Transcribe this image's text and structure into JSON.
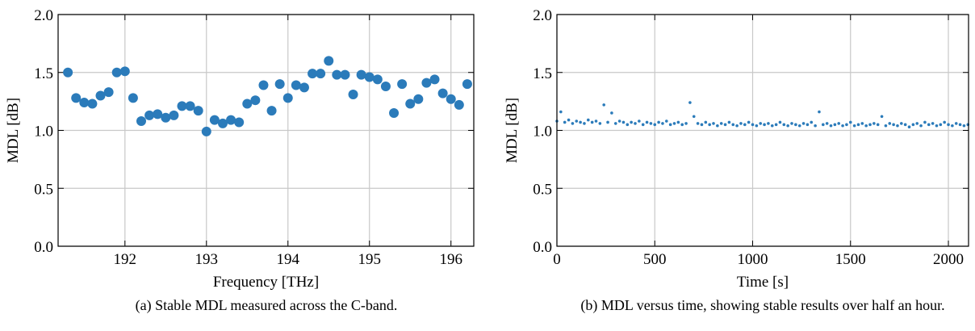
{
  "chart_data": [
    {
      "type": "scatter",
      "color": "#2b7bba",
      "grid": true,
      "xlabel": "Frequency [THz]",
      "ylabel": "MDL [dB]",
      "caption": "(a) Stable MDL measured across the C-band.",
      "xlim": [
        191.18,
        196.28
      ],
      "ylim": [
        0,
        2
      ],
      "xticks": [
        192,
        193,
        194,
        195,
        196
      ],
      "yticks": [
        {
          "value": 0,
          "label": "0.0"
        },
        {
          "value": 0.5,
          "label": "0.5"
        },
        {
          "value": 1,
          "label": "1.0"
        },
        {
          "value": 1.5,
          "label": "1.5"
        },
        {
          "value": 2,
          "label": "2.0"
        }
      ],
      "x": [
        191.3,
        191.4,
        191.5,
        191.6,
        191.7,
        191.8,
        191.9,
        192.0,
        192.1,
        192.2,
        192.3,
        192.4,
        192.5,
        192.6,
        192.7,
        192.8,
        192.9,
        193.0,
        193.1,
        193.2,
        193.3,
        193.4,
        193.5,
        193.6,
        193.7,
        193.8,
        193.9,
        194.0,
        194.1,
        194.2,
        194.3,
        194.4,
        194.5,
        194.6,
        194.7,
        194.8,
        194.9,
        195.0,
        195.1,
        195.2,
        195.3,
        195.4,
        195.5,
        195.6,
        195.7,
        195.8,
        195.9,
        196.0,
        196.1,
        196.2
      ],
      "values": [
        1.5,
        1.28,
        1.24,
        1.23,
        1.3,
        1.33,
        1.5,
        1.51,
        1.28,
        1.08,
        1.13,
        1.14,
        1.11,
        1.13,
        1.21,
        1.21,
        1.17,
        0.99,
        1.09,
        1.06,
        1.09,
        1.07,
        1.23,
        1.26,
        1.39,
        1.17,
        1.4,
        1.28,
        1.39,
        1.37,
        1.49,
        1.49,
        1.6,
        1.48,
        1.48,
        1.31,
        1.48,
        1.46,
        1.44,
        1.38,
        1.15,
        1.4,
        1.23,
        1.27,
        1.41,
        1.44,
        1.32,
        1.27,
        1.22,
        1.4
      ]
    },
    {
      "type": "scatter",
      "color": "#2b7bba",
      "grid": true,
      "xlabel": "Time [s]",
      "ylabel": "MDL [dB]",
      "caption": "(b) MDL versus time, showing stable results over half an hour.",
      "xlim": [
        0,
        2103
      ],
      "ylim": [
        0,
        2
      ],
      "xticks": [
        0,
        500,
        1000,
        1500,
        2000
      ],
      "yticks": [
        {
          "value": 0,
          "label": "0.0"
        },
        {
          "value": 0.5,
          "label": "0.5"
        },
        {
          "value": 1,
          "label": "1.0"
        },
        {
          "value": 1.5,
          "label": "1.5"
        },
        {
          "value": 2,
          "label": "2.0"
        }
      ],
      "x": [
        0,
        20,
        40,
        60,
        80,
        100,
        120,
        140,
        160,
        180,
        200,
        220,
        240,
        260,
        280,
        300,
        320,
        340,
        360,
        380,
        400,
        420,
        440,
        460,
        480,
        500,
        520,
        540,
        560,
        580,
        600,
        620,
        640,
        660,
        680,
        700,
        720,
        740,
        760,
        780,
        800,
        820,
        840,
        860,
        880,
        900,
        920,
        940,
        960,
        980,
        1000,
        1020,
        1040,
        1060,
        1080,
        1100,
        1120,
        1140,
        1160,
        1180,
        1200,
        1220,
        1240,
        1260,
        1280,
        1300,
        1320,
        1340,
        1360,
        1380,
        1400,
        1420,
        1440,
        1460,
        1480,
        1500,
        1520,
        1540,
        1560,
        1580,
        1600,
        1620,
        1640,
        1660,
        1680,
        1700,
        1720,
        1740,
        1760,
        1780,
        1800,
        1820,
        1840,
        1860,
        1880,
        1900,
        1920,
        1940,
        1960,
        1980,
        2000,
        2020,
        2040,
        2060,
        2080,
        2100
      ],
      "values": [
        1.08,
        1.16,
        1.07,
        1.09,
        1.06,
        1.08,
        1.07,
        1.06,
        1.09,
        1.07,
        1.08,
        1.06,
        1.22,
        1.07,
        1.15,
        1.06,
        1.08,
        1.07,
        1.05,
        1.07,
        1.06,
        1.08,
        1.05,
        1.07,
        1.06,
        1.05,
        1.07,
        1.06,
        1.08,
        1.05,
        1.06,
        1.07,
        1.05,
        1.06,
        1.24,
        1.12,
        1.06,
        1.05,
        1.07,
        1.05,
        1.06,
        1.04,
        1.06,
        1.05,
        1.07,
        1.05,
        1.04,
        1.06,
        1.05,
        1.07,
        1.05,
        1.04,
        1.06,
        1.05,
        1.06,
        1.04,
        1.05,
        1.07,
        1.05,
        1.04,
        1.06,
        1.05,
        1.04,
        1.06,
        1.05,
        1.07,
        1.04,
        1.16,
        1.05,
        1.06,
        1.04,
        1.05,
        1.06,
        1.04,
        1.05,
        1.07,
        1.04,
        1.05,
        1.06,
        1.04,
        1.05,
        1.06,
        1.05,
        1.12,
        1.04,
        1.06,
        1.05,
        1.04,
        1.06,
        1.05,
        1.03,
        1.05,
        1.06,
        1.04,
        1.07,
        1.05,
        1.06,
        1.04,
        1.05,
        1.07,
        1.05,
        1.04,
        1.06,
        1.05,
        1.04,
        1.05
      ]
    }
  ]
}
